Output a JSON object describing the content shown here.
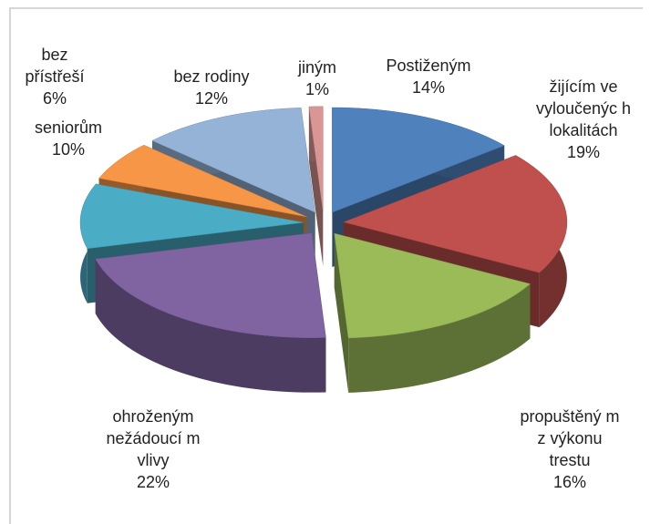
{
  "chart_data": {
    "type": "pie3d",
    "categories": [
      "Postiženým",
      "žijícím ve vyloučenýc h lokalitách",
      "propuštěný m z výkonu trestu",
      "ohroženým nežádoucí m vlivy",
      "seniorům",
      "bez přístřeší",
      "bez rodiny",
      "jiným"
    ],
    "values": [
      14,
      19,
      16,
      22,
      10,
      6,
      12,
      1
    ],
    "value_labels": [
      "14%",
      "19%",
      "16%",
      "22%",
      "10%",
      "6%",
      "12%",
      "1%"
    ],
    "colors": [
      "#4f81bd",
      "#c0504d",
      "#9bbb59",
      "#8064a2",
      "#4bacc6",
      "#f79646",
      "#95b3d7",
      "#d99694"
    ]
  }
}
